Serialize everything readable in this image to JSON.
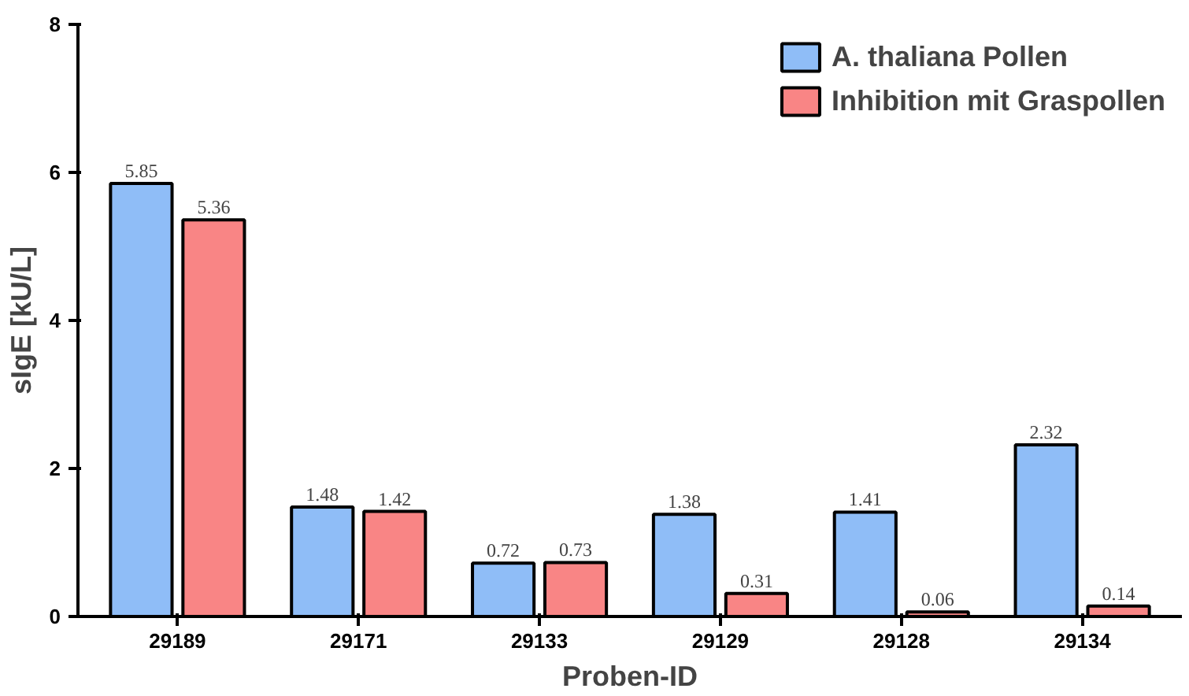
{
  "chart_data": {
    "type": "bar",
    "xlabel": "Proben-ID",
    "ylabel": "sIgE [kU/L]",
    "categories": [
      "29189",
      "29171",
      "29133",
      "29129",
      "29128",
      "29134"
    ],
    "series": [
      {
        "name": "A. thaliana Pollen",
        "color": "#8fbdf7",
        "values": [
          5.85,
          1.48,
          0.72,
          1.38,
          1.41,
          2.32
        ]
      },
      {
        "name": "Inhibition mit Graspollen",
        "color": "#f98585",
        "values": [
          5.36,
          1.42,
          0.73,
          0.31,
          0.06,
          0.14
        ]
      }
    ],
    "ylim": [
      0,
      8
    ],
    "yticks": [
      0,
      2,
      4,
      6,
      8
    ],
    "data_labels": true,
    "grid": false,
    "legend": "top right"
  }
}
